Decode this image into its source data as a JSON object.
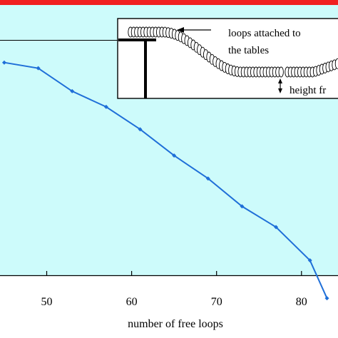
{
  "chart_data": {
    "type": "line",
    "title": "",
    "xlabel": "number of free loops",
    "ylabel": "",
    "xlim": [
      44.5,
      84.3
    ],
    "ylim": [
      0,
      1
    ],
    "x_ticks": [
      50,
      60,
      70,
      80
    ],
    "grid": false,
    "legend": "none",
    "series": [
      {
        "color": "#1f6fd8",
        "x": [
          45,
          49,
          53,
          57,
          61,
          65,
          69,
          73,
          77,
          81,
          83
        ],
        "y": [
          0.787,
          0.766,
          0.681,
          0.623,
          0.54,
          0.443,
          0.358,
          0.255,
          0.178,
          0.055,
          -0.085
        ]
      }
    ],
    "colors": {
      "plot_background": "#cdfbfb",
      "top_band": "#f11f20",
      "line": "#1f6fd8"
    },
    "inset": {
      "label_loops": "loops attached to",
      "label_tables": "the tables",
      "label_height": "height fr"
    }
  }
}
